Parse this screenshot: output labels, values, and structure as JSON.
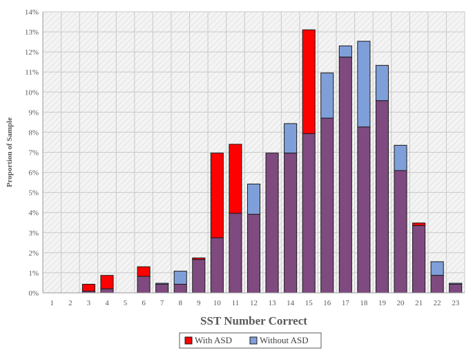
{
  "chart_data": {
    "type": "bar",
    "xlabel": "SST Number Correct",
    "ylabel": "Proportion of Sample",
    "ylim": [
      0,
      14
    ],
    "y_tick_step": 1,
    "y_tick_suffix": "%",
    "grid": true,
    "legend_position": "bottom",
    "categories": [
      "1",
      "2",
      "3",
      "4",
      "5",
      "6",
      "7",
      "8",
      "9",
      "10",
      "11",
      "12",
      "13",
      "14",
      "15",
      "16",
      "17",
      "18",
      "19",
      "20",
      "21",
      "22",
      "23"
    ],
    "series": [
      {
        "name": "With ASD",
        "color": "#ff0000",
        "values": [
          0,
          0,
          0.43,
          0.87,
          0,
          1.3,
          0.43,
          0.43,
          1.74,
          6.96,
          7.4,
          3.91,
          6.96,
          6.96,
          13.1,
          8.7,
          11.74,
          8.26,
          9.57,
          6.09,
          3.48,
          0.87,
          0.43
        ]
      },
      {
        "name": "Without ASD",
        "color": "#7f9fd9",
        "values": [
          0,
          0,
          0.08,
          0.2,
          0,
          0.82,
          0.48,
          1.08,
          1.66,
          2.74,
          3.96,
          5.42,
          6.96,
          8.43,
          7.93,
          10.95,
          12.3,
          12.53,
          11.33,
          7.35,
          3.35,
          1.55,
          0.48
        ]
      }
    ],
    "overlap_color": "#7f4a7f"
  }
}
